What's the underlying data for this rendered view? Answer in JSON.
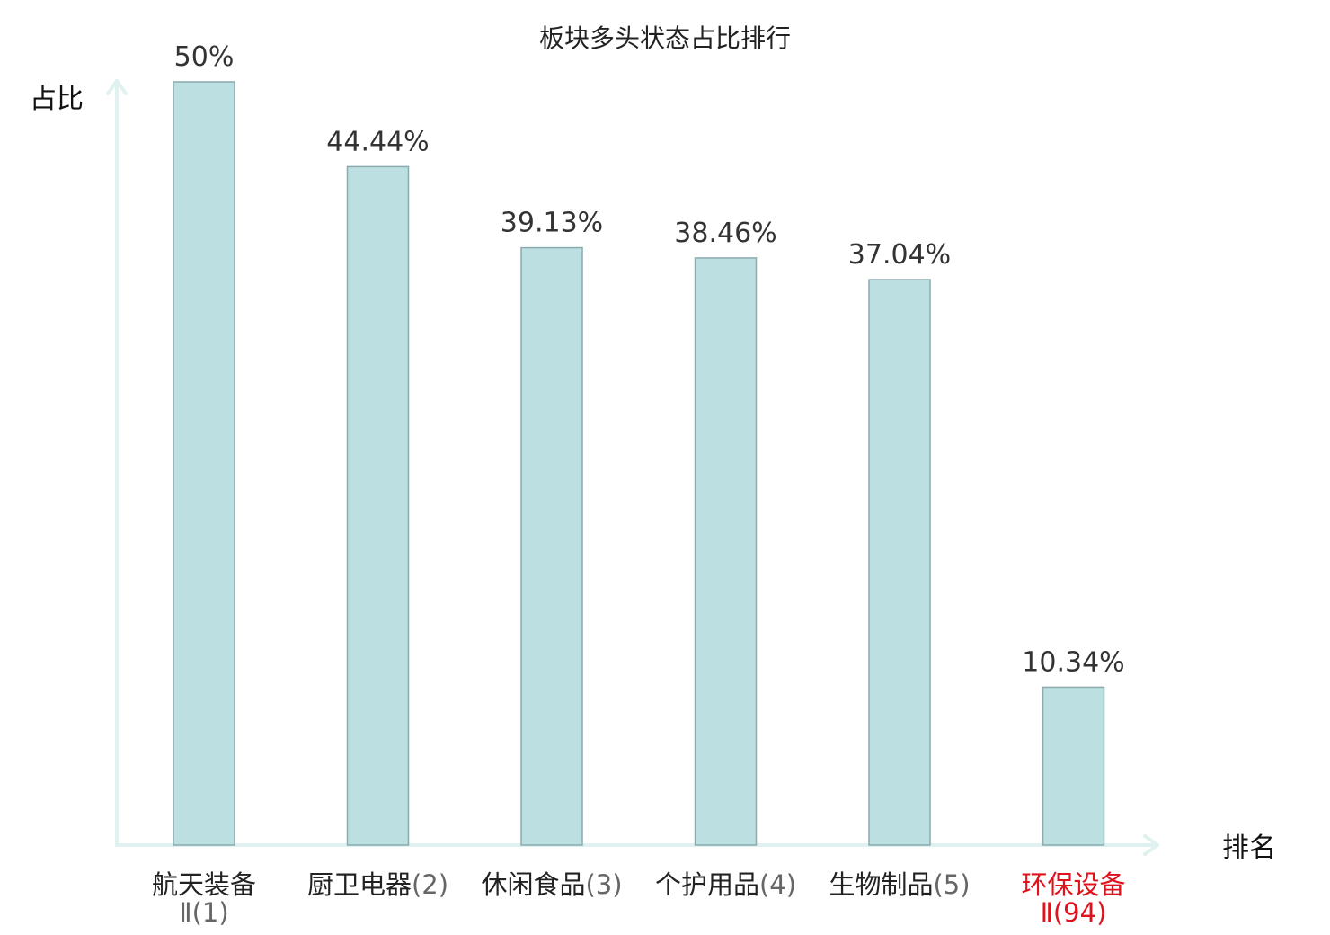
{
  "colors": {
    "bar_fill": "#bce0e2",
    "bar_stroke": "#8aaaae",
    "axis": "#dff2ef",
    "text": "#222222",
    "rank": "#666666",
    "highlight": "#e0121c"
  },
  "chart_data": {
    "type": "bar",
    "title": "板块多头状态占比排行",
    "ylabel": "占比",
    "xlabel": "排名",
    "ylim": [
      0,
      50
    ],
    "grid": false,
    "legend": "none",
    "categories": [
      {
        "line1": "航天装备",
        "line2": "Ⅱ(1)",
        "line1_rank": "",
        "highlight": false
      },
      {
        "line1": "厨卫电器",
        "line2": "",
        "line1_rank": "(2)",
        "highlight": false
      },
      {
        "line1": "休闲食品",
        "line2": "",
        "line1_rank": "(3)",
        "highlight": false
      },
      {
        "line1": "个护用品",
        "line2": "",
        "line1_rank": "(4)",
        "highlight": false
      },
      {
        "line1": "生物制品",
        "line2": "",
        "line1_rank": "(5)",
        "highlight": false
      },
      {
        "line1": "环保设备",
        "line2": "Ⅱ(94)",
        "line1_rank": "",
        "highlight": true
      }
    ],
    "values": [
      50,
      44.44,
      39.13,
      38.46,
      37.04,
      10.34
    ],
    "value_labels": [
      "50%",
      "44.44%",
      "39.13%",
      "38.46%",
      "37.04%",
      "10.34%"
    ]
  }
}
